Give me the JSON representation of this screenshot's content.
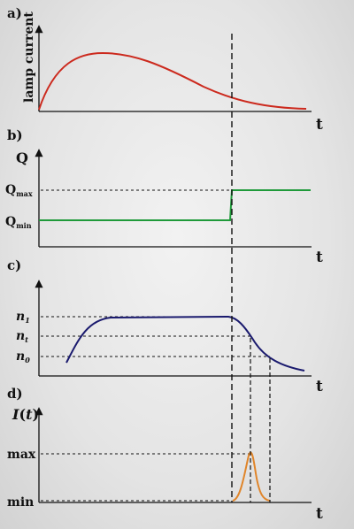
{
  "panels": {
    "a": {
      "label": "a)",
      "ylabel": "lamp current",
      "xlabel": "t"
    },
    "b": {
      "label": "b)",
      "ylabel": "Q",
      "xlabel": "t",
      "ticks": [
        {
          "main": "Q",
          "sub": "max"
        },
        {
          "main": "Q",
          "sub": "min"
        }
      ]
    },
    "c": {
      "label": "c)",
      "xlabel": "t",
      "ticks": [
        {
          "main": "n",
          "sub": "1"
        },
        {
          "main": "n",
          "sub": "t"
        },
        {
          "main": "n",
          "sub": "0"
        }
      ]
    },
    "d": {
      "label": "d)",
      "ylabel_main": "I",
      "ylabel_arg": "(",
      "ylabel_var": "t",
      "ylabel_close": ")",
      "xlabel": "t",
      "ticks": [
        "max",
        "min"
      ]
    }
  },
  "colors": {
    "axis": "#111111",
    "lamp_current": "#cc2a1e",
    "q_switch": "#1f9a3a",
    "population": "#1a1a6e",
    "pulse": "#e0852a",
    "guide": "#111111"
  }
}
